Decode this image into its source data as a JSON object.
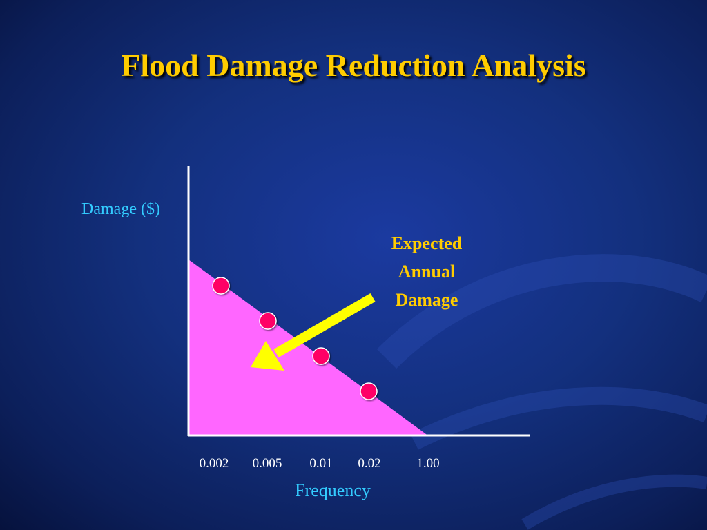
{
  "title": "Flood Damage Reduction Analysis",
  "colors": {
    "title": "#ffcc00",
    "axis_label": "#33ccff",
    "area_fill": "#ff66ff",
    "point": "#ff0066",
    "arrow": "#ffff00",
    "annotation": "#ffcc00",
    "axis": "#ffffff",
    "tick_label": "#ffffff"
  },
  "chart_data": {
    "type": "area",
    "ylabel": "Damage ($)",
    "xlabel": "Frequency",
    "x_tick_labels": [
      "0.002",
      "0.005",
      "0.01",
      "0.02",
      "1.00"
    ],
    "points": [
      {
        "x": "0.002"
      },
      {
        "x": "0.005"
      },
      {
        "x": "0.01"
      },
      {
        "x": "0.02"
      }
    ],
    "annotation": {
      "lines": [
        "Expected",
        "Annual",
        "Damage"
      ]
    }
  }
}
